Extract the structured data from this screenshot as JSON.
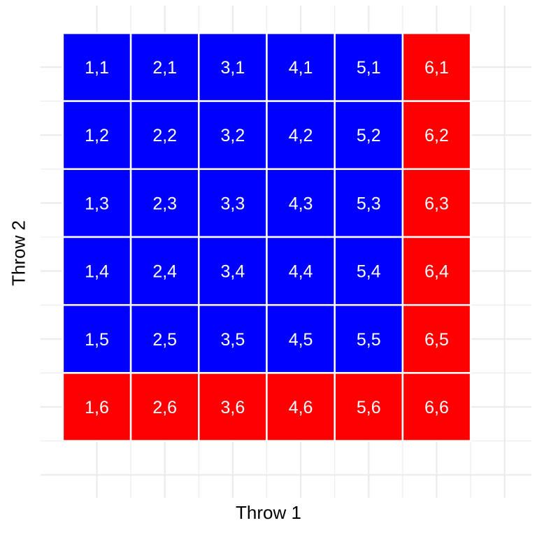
{
  "chart_data": {
    "type": "heatmap",
    "title": "",
    "xlabel": "Throw 1",
    "ylabel": "Throw 2",
    "x_categories": [
      "1",
      "2",
      "3",
      "4",
      "5",
      "6"
    ],
    "y_categories": [
      "1",
      "2",
      "3",
      "4",
      "5",
      "6"
    ],
    "grid": true,
    "legend": "none",
    "colors": {
      "blue": "#0000ff",
      "red": "#ff0000",
      "label": "#ffffff",
      "grid": "#ebebeb"
    },
    "cells": [
      {
        "x": 1,
        "y": 1,
        "label": "1,1",
        "fill": "blue"
      },
      {
        "x": 2,
        "y": 1,
        "label": "2,1",
        "fill": "blue"
      },
      {
        "x": 3,
        "y": 1,
        "label": "3,1",
        "fill": "blue"
      },
      {
        "x": 4,
        "y": 1,
        "label": "4,1",
        "fill": "blue"
      },
      {
        "x": 5,
        "y": 1,
        "label": "5,1",
        "fill": "blue"
      },
      {
        "x": 6,
        "y": 1,
        "label": "6,1",
        "fill": "red"
      },
      {
        "x": 1,
        "y": 2,
        "label": "1,2",
        "fill": "blue"
      },
      {
        "x": 2,
        "y": 2,
        "label": "2,2",
        "fill": "blue"
      },
      {
        "x": 3,
        "y": 2,
        "label": "3,2",
        "fill": "blue"
      },
      {
        "x": 4,
        "y": 2,
        "label": "4,2",
        "fill": "blue"
      },
      {
        "x": 5,
        "y": 2,
        "label": "5,2",
        "fill": "blue"
      },
      {
        "x": 6,
        "y": 2,
        "label": "6,2",
        "fill": "red"
      },
      {
        "x": 1,
        "y": 3,
        "label": "1,3",
        "fill": "blue"
      },
      {
        "x": 2,
        "y": 3,
        "label": "2,3",
        "fill": "blue"
      },
      {
        "x": 3,
        "y": 3,
        "label": "3,3",
        "fill": "blue"
      },
      {
        "x": 4,
        "y": 3,
        "label": "4,3",
        "fill": "blue"
      },
      {
        "x": 5,
        "y": 3,
        "label": "5,3",
        "fill": "blue"
      },
      {
        "x": 6,
        "y": 3,
        "label": "6,3",
        "fill": "red"
      },
      {
        "x": 1,
        "y": 4,
        "label": "1,4",
        "fill": "blue"
      },
      {
        "x": 2,
        "y": 4,
        "label": "2,4",
        "fill": "blue"
      },
      {
        "x": 3,
        "y": 4,
        "label": "3,4",
        "fill": "blue"
      },
      {
        "x": 4,
        "y": 4,
        "label": "4,4",
        "fill": "blue"
      },
      {
        "x": 5,
        "y": 4,
        "label": "5,4",
        "fill": "blue"
      },
      {
        "x": 6,
        "y": 4,
        "label": "6,4",
        "fill": "red"
      },
      {
        "x": 1,
        "y": 5,
        "label": "1,5",
        "fill": "blue"
      },
      {
        "x": 2,
        "y": 5,
        "label": "2,5",
        "fill": "blue"
      },
      {
        "x": 3,
        "y": 5,
        "label": "3,5",
        "fill": "blue"
      },
      {
        "x": 4,
        "y": 5,
        "label": "4,5",
        "fill": "blue"
      },
      {
        "x": 5,
        "y": 5,
        "label": "5,5",
        "fill": "blue"
      },
      {
        "x": 6,
        "y": 5,
        "label": "6,5",
        "fill": "red"
      },
      {
        "x": 1,
        "y": 6,
        "label": "1,6",
        "fill": "red"
      },
      {
        "x": 2,
        "y": 6,
        "label": "2,6",
        "fill": "red"
      },
      {
        "x": 3,
        "y": 6,
        "label": "3,6",
        "fill": "red"
      },
      {
        "x": 4,
        "y": 6,
        "label": "4,6",
        "fill": "red"
      },
      {
        "x": 5,
        "y": 6,
        "label": "5,6",
        "fill": "red"
      },
      {
        "x": 6,
        "y": 6,
        "label": "6,6",
        "fill": "red"
      }
    ]
  }
}
